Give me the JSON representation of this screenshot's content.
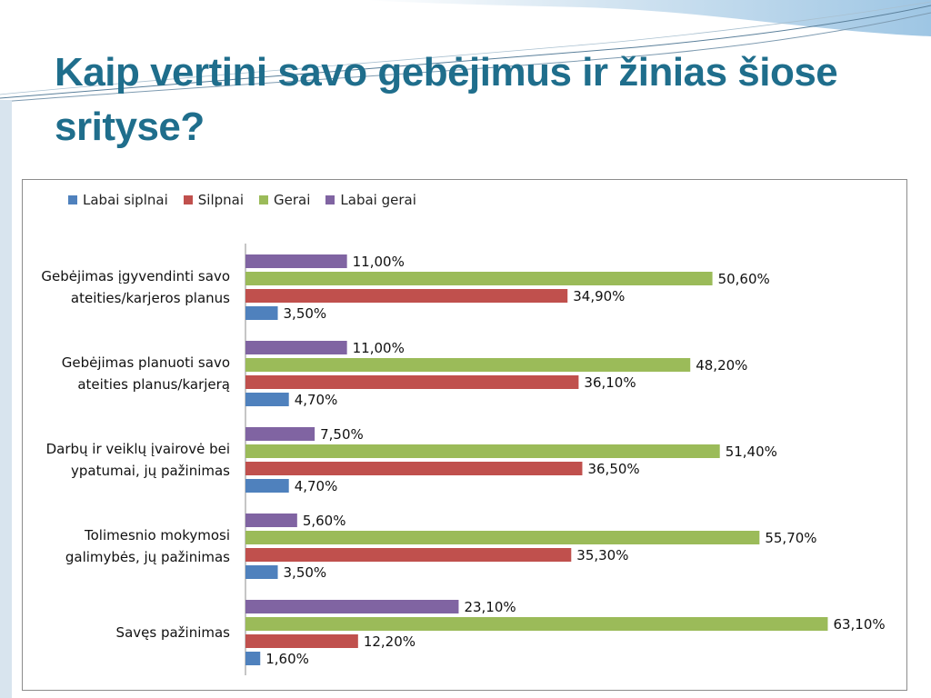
{
  "title": "Kaip vertini savo gebėjimus ir žinias šiose srityse?",
  "colors": {
    "title": "#1f6e8c",
    "labai_silpnai": "#4f81bd",
    "silpnai": "#c0504d",
    "gerai": "#9bbb59",
    "labai_gerai": "#8064a2"
  },
  "legend": [
    {
      "label": "Labai siplnai",
      "color": "#4f81bd"
    },
    {
      "label": "Silpnai",
      "color": "#c0504d"
    },
    {
      "label": "Gerai",
      "color": "#9bbb59"
    },
    {
      "label": "Labai gerai",
      "color": "#8064a2"
    }
  ],
  "chart_data": {
    "type": "bar",
    "orientation": "horizontal",
    "categories": [
      [
        "Gebėjimas įgyvendinti savo",
        "ateities/karjeros planus"
      ],
      [
        "Gebėjimas planuoti savo",
        "ateities planus/karjerą"
      ],
      [
        "Darbų ir veiklų įvairovė bei",
        "ypatumai, jų pažinimas"
      ],
      [
        "Tolimesnio mokymosi",
        "galimybės, jų pažinimas"
      ],
      [
        "Savęs pažinimas"
      ]
    ],
    "series": [
      {
        "name": "Labai siplnai",
        "color": "#4f81bd",
        "values": [
          3.5,
          4.7,
          4.7,
          3.5,
          1.6
        ],
        "labels": [
          "3,50%",
          "4,70%",
          "4,70%",
          "3,50%",
          "1,60%"
        ]
      },
      {
        "name": "Silpnai",
        "color": "#c0504d",
        "values": [
          34.9,
          36.1,
          36.5,
          35.3,
          12.2
        ],
        "labels": [
          "34,90%",
          "36,10%",
          "36,50%",
          "35,30%",
          "12,20%"
        ]
      },
      {
        "name": "Gerai",
        "color": "#9bbb59",
        "values": [
          50.6,
          48.2,
          51.4,
          55.7,
          63.1
        ],
        "labels": [
          "50,60%",
          "48,20%",
          "51,40%",
          "55,70%",
          "63,10%"
        ]
      },
      {
        "name": "Labai gerai",
        "color": "#8064a2",
        "values": [
          11.0,
          11.0,
          7.5,
          5.6,
          23.1
        ],
        "labels": [
          "11,00%",
          "11,00%",
          "7,50%",
          "5,60%",
          "23,10%"
        ]
      }
    ],
    "xlim": [
      0,
      70
    ],
    "axis": "hidden",
    "grid": false,
    "legend_position": "top-left"
  }
}
